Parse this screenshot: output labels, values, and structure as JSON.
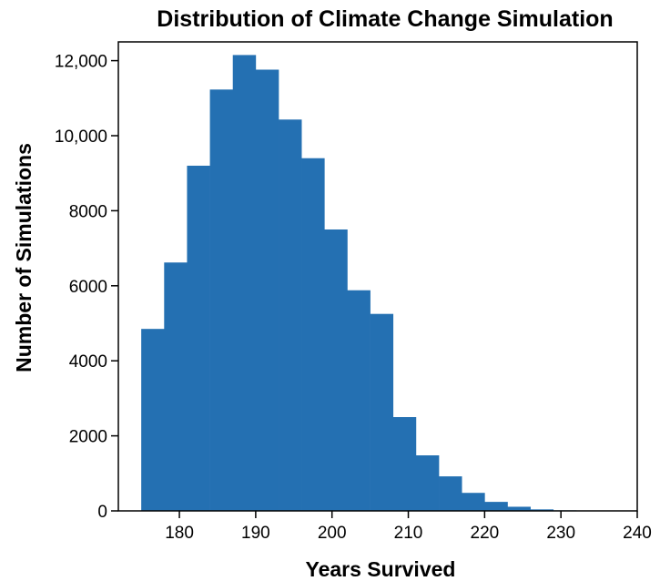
{
  "chart_data": {
    "type": "bar",
    "title": "Distribution of Climate Change Simulation",
    "xlabel": "Years Survived",
    "ylabel": "Number of Simulations",
    "xlim": [
      172,
      240
    ],
    "ylim": [
      0,
      12500
    ],
    "xticks": [
      180,
      190,
      200,
      210,
      220,
      230,
      240
    ],
    "xtick_labels": [
      "180",
      "190",
      "200",
      "210",
      "220",
      "230",
      "240"
    ],
    "yticks": [
      0,
      2000,
      4000,
      6000,
      8000,
      10000,
      12000
    ],
    "ytick_labels": [
      "0",
      "2000",
      "4000",
      "6000",
      "8000",
      "10,000",
      "12,000"
    ],
    "bin_width": 3,
    "bin_starts": [
      175,
      178,
      181,
      184,
      187,
      190,
      193,
      196,
      199,
      202,
      205,
      208,
      211,
      214,
      217,
      220,
      223,
      226,
      229,
      232,
      235
    ],
    "values": [
      4850,
      6620,
      9200,
      11230,
      12150,
      11760,
      10430,
      9400,
      7500,
      5880,
      5250,
      2500,
      1480,
      920,
      480,
      240,
      110,
      40,
      15,
      5,
      2
    ],
    "bar_color": "#2470B2",
    "grid": false
  }
}
